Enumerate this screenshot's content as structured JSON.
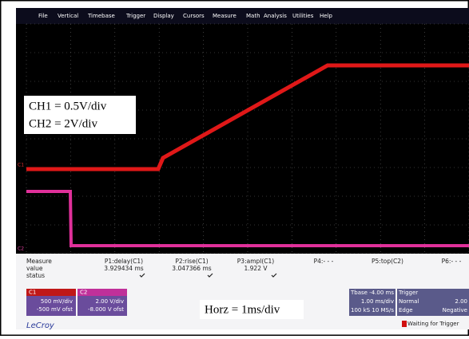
{
  "menu": [
    "File",
    "Vertical",
    "Timebase",
    "Trigger",
    "Display",
    "Cursors",
    "Measure",
    "Math",
    "Analysis",
    "Utilities",
    "Help"
  ],
  "annotations": {
    "ch1": "CH1 = 0.5V/div",
    "ch2": "CH2 = 2V/div",
    "horz": "Horz = 1ms/div"
  },
  "trace_labels": {
    "c1": "C1",
    "c2": "C2"
  },
  "measure": {
    "row_labels": [
      "Measure",
      "value",
      "status"
    ],
    "params": [
      {
        "name": "P1:delay(C1)",
        "value": "3.929434 ms"
      },
      {
        "name": "P2:rise(C1)",
        "value": "3.047366 ms"
      },
      {
        "name": "P3:ampl(C1)",
        "value": "1.922 V"
      },
      {
        "name": "P4:- - -",
        "value": ""
      },
      {
        "name": "P5:top(C2)",
        "value": ""
      },
      {
        "name": "P6:- - -",
        "value": ""
      }
    ]
  },
  "channels": [
    {
      "name": "C1",
      "scale": "500 mV/div",
      "offset": "-500 mV ofst"
    },
    {
      "name": "C2",
      "scale": "2.00 V/div",
      "offset": "-8.000 V ofst"
    }
  ],
  "timebase": {
    "title": "Tbase",
    "delay": "-4.00 ms",
    "scale": "1.00 ms/div",
    "samples": "100 kS",
    "rate": "10 MS/s"
  },
  "trigger": {
    "title": "Trigger",
    "mode": "Normal",
    "level": "2.00",
    "type": "Edge",
    "slope": "Negative"
  },
  "brand": "LeCroy",
  "status": "Waiting for Trigger"
}
